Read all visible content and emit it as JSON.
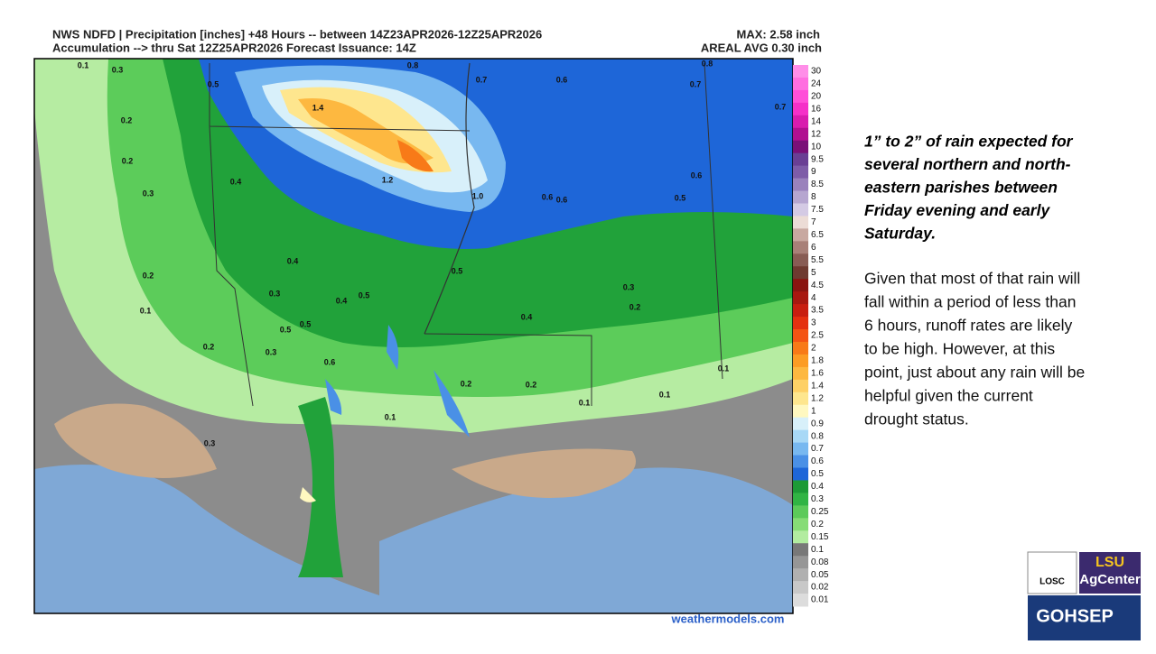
{
  "header": {
    "line1": "NWS NDFD | Precipitation [inches] +48 Hours -- between 14Z23APR2026-12Z25APR2026",
    "line2": "Accumulation --> thru Sat 12Z25APR2026   Forecast Issuance: 14Z",
    "max": "MAX: 2.58 inch",
    "avg": "AREAL AVG 0.30 inch"
  },
  "source": "weathermodels.com",
  "map_labels": [
    "0.1",
    "0.3",
    "0.8",
    "0.8",
    "0.5",
    "0.7",
    "0.6",
    "0.7",
    "0.7",
    "1.4",
    "0.2",
    "0.2",
    "0.6",
    "0.4",
    "1.2",
    "0.3",
    "1.0",
    "0.6",
    "0.6",
    "0.5",
    "0.4",
    "0.5",
    "0.2",
    "0.3",
    "0.5",
    "0.4",
    "0.3",
    "0.2",
    "0.1",
    "0.4",
    "0.5",
    "0.5",
    "0.2",
    "0.3",
    "0.6",
    "0.1",
    "0.2",
    "0.2",
    "0.1",
    "0.1",
    "0.1",
    "0.3"
  ],
  "legend": [
    {
      "label": "30",
      "color": "#ff8ee8"
    },
    {
      "label": "24",
      "color": "#ff6ee0"
    },
    {
      "label": "20",
      "color": "#ff4fd8"
    },
    {
      "label": "16",
      "color": "#f530c8"
    },
    {
      "label": "14",
      "color": "#d81cae"
    },
    {
      "label": "12",
      "color": "#b01090"
    },
    {
      "label": "10",
      "color": "#7a1078"
    },
    {
      "label": "9.5",
      "color": "#6a3f94"
    },
    {
      "label": "9",
      "color": "#7e5ca8"
    },
    {
      "label": "8.5",
      "color": "#9a82bc"
    },
    {
      "label": "8",
      "color": "#b6a6d0"
    },
    {
      "label": "7.5",
      "color": "#d4cae4"
    },
    {
      "label": "7",
      "color": "#ecdcd6"
    },
    {
      "label": "6.5",
      "color": "#c8a8a0"
    },
    {
      "label": "6",
      "color": "#a88078"
    },
    {
      "label": "5.5",
      "color": "#885c54"
    },
    {
      "label": "5",
      "color": "#6e3a30"
    },
    {
      "label": "4.5",
      "color": "#8a1410"
    },
    {
      "label": "4",
      "color": "#a81810"
    },
    {
      "label": "3.5",
      "color": "#c81e10"
    },
    {
      "label": "3",
      "color": "#e43010"
    },
    {
      "label": "2.5",
      "color": "#f45414"
    },
    {
      "label": "2",
      "color": "#f87a18"
    },
    {
      "label": "1.8",
      "color": "#fc9c24"
    },
    {
      "label": "1.6",
      "color": "#fdb840"
    },
    {
      "label": "1.4",
      "color": "#fed066"
    },
    {
      "label": "1.2",
      "color": "#fee68e"
    },
    {
      "label": "1",
      "color": "#fff8c0"
    },
    {
      "label": "0.9",
      "color": "#d8f0fa"
    },
    {
      "label": "0.8",
      "color": "#a8d8f6"
    },
    {
      "label": "0.7",
      "color": "#78b8f0"
    },
    {
      "label": "0.6",
      "color": "#4a90e6"
    },
    {
      "label": "0.5",
      "color": "#1e66d8"
    },
    {
      "label": "0.4",
      "color": "#1c9a36"
    },
    {
      "label": "0.3",
      "color": "#30b444"
    },
    {
      "label": "0.25",
      "color": "#5cca5a"
    },
    {
      "label": "0.2",
      "color": "#86dc76"
    },
    {
      "label": "0.15",
      "color": "#b2eca0"
    },
    {
      "label": "0.1",
      "color": "#787878"
    },
    {
      "label": "0.08",
      "color": "#969696"
    },
    {
      "label": "0.05",
      "color": "#b0b0b0"
    },
    {
      "label": "0.02",
      "color": "#c8c8c8"
    },
    {
      "label": "0.01",
      "color": "#dcdcdc"
    }
  ],
  "text_block": {
    "heading": [
      "1” to 2” of rain expected for",
      "several northern and north-",
      "eastern parishes between",
      "Friday evening and early",
      "Saturday."
    ],
    "body": [
      "Given that most of that rain will",
      "fall within a period of less than",
      "6 hours, runoff rates are likely",
      "to be high.  However, at this",
      "point, just about any rain will be",
      "helpful given the current",
      "drought status."
    ]
  },
  "logos": {
    "losc": "LOSC",
    "lsu": "LSU",
    "agcenter": "AgCenter",
    "gohsep": "GOHSEP"
  }
}
